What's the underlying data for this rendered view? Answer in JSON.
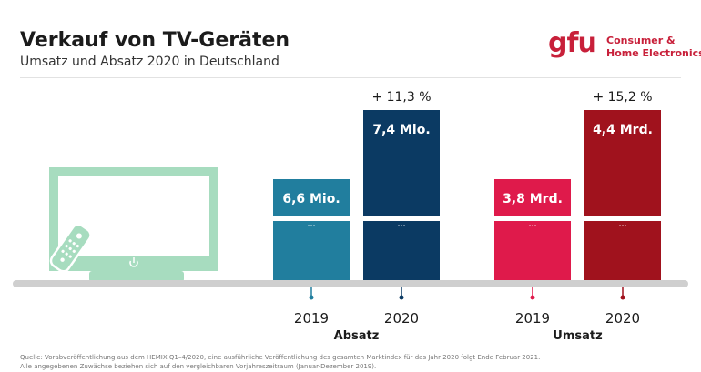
{
  "header": {
    "title": "Verkauf von TV-Geräten",
    "subtitle": "Umsatz und Absatz 2020 in Deutschland"
  },
  "logo": {
    "mark": "gfu",
    "line1": "Consumer &",
    "line2": "Home Electronics",
    "color": "#c8203a"
  },
  "colors": {
    "absatz_2019": "#217e9e",
    "absatz_2020": "#0b3a63",
    "umsatz_2019": "#df1a4b",
    "umsatz_2020": "#a0121d",
    "tv": "#a7dcbf",
    "baseline": "#cfcfcf"
  },
  "icons": [
    "tv-icon",
    "remote-control-icon",
    "power-icon"
  ],
  "chart_data": {
    "type": "bar",
    "title": "Verkauf von TV-Geräten",
    "groups": [
      {
        "name": "Absatz",
        "unit": "Mio.",
        "bars": [
          {
            "year": "2019",
            "value": 6.6,
            "label": "6,6 Mio.",
            "growth": ""
          },
          {
            "year": "2020",
            "value": 7.4,
            "label": "7,4 Mio.",
            "growth": "+ 11,3 %"
          }
        ]
      },
      {
        "name": "Umsatz",
        "unit": "Mrd.",
        "bars": [
          {
            "year": "2019",
            "value": 3.8,
            "label": "3,8 Mrd.",
            "growth": ""
          },
          {
            "year": "2020",
            "value": 4.4,
            "label": "4,4 Mrd.",
            "growth": "+ 15,2 %"
          }
        ]
      }
    ],
    "break_marker": "...",
    "axis": "broken y-axis, no scale shown"
  },
  "footnote": {
    "line1": "Quelle: Vorabveröffentlichung aus dem HEMIX Q1–4/2020, eine ausführliche Veröffentlichung des gesamten Marktindex für das Jahr 2020 folgt Ende Februar 2021.",
    "line2": "Alle angegebenen Zuwächse beziehen sich auf den vergleichbaren Vorjahreszeitraum (Januar-Dezember 2019)."
  }
}
